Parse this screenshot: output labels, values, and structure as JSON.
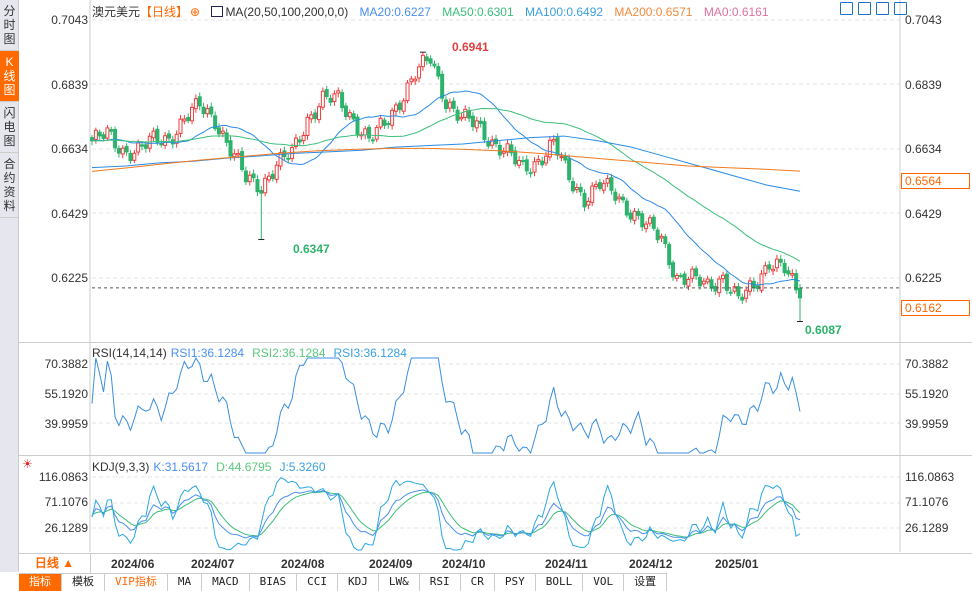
{
  "sidebar": {
    "tabs": [
      "分时图",
      "K线图",
      "闪电图",
      "合约资料"
    ],
    "active": 1
  },
  "header": {
    "symbol": "澳元美元",
    "period": "【日线】",
    "ma_label": "MA(20,50,100,200,0,0)",
    "ma20": "MA20:0.6227",
    "ma50": "MA50:0.6301",
    "ma100": "MA100:0.6492",
    "ma200": "MA200:0.6571",
    "ma0": "MA0:0.6161"
  },
  "colors": {
    "up": "#ee3d3d",
    "down": "#2db36b",
    "ma20": "#2a8ae6",
    "ma50": "#3cbf7a",
    "ma100": "#2a8ae6",
    "ma200": "#f07a1e",
    "accent": "#ff6a00"
  },
  "price_axis": {
    "labels": [
      "0.7043",
      "0.6839",
      "0.6634",
      "0.6429",
      "0.6225"
    ],
    "ma200_tag": "0.6564",
    "current_tag": "0.6162"
  },
  "annotations": {
    "high": "0.6941",
    "low_mid": "0.6347",
    "low_last": "0.6087"
  },
  "rsi": {
    "title": "RSI(14,14,14)",
    "rsi1": "RSI1:36.1284",
    "rsi2": "RSI2:36.1284",
    "rsi3": "RSI3:36.1284",
    "axis": [
      "70.3882",
      "55.1920",
      "39.9959"
    ]
  },
  "kdj": {
    "title": "KDJ(9,3,3)",
    "k": "K:31.5617",
    "d": "D:44.6795",
    "j": "J:5.3260",
    "axis": [
      "116.0863",
      "71.1076",
      "26.1289"
    ]
  },
  "dates": {
    "period": "日线 ▲",
    "months": [
      "2024/06",
      "2024/07",
      "2024/08",
      "2024/09",
      "2024/10",
      "2024/11",
      "2024/12",
      "2025/01"
    ]
  },
  "toolbar": [
    "指标",
    "模板",
    "VIP指标",
    "MA",
    "MACD",
    "BIAS",
    "CCI",
    "KDJ",
    "LW&",
    "RSI",
    "CR",
    "PSY",
    "BOLL",
    "VOL",
    "设置"
  ],
  "chart_data": {
    "type": "candlestick",
    "title": "澳元美元 日线",
    "weekly_close": [
      0.666,
      0.6678,
      0.663,
      0.663,
      0.666,
      0.667,
      0.6726,
      0.677,
      0.673,
      0.663,
      0.654,
      0.652,
      0.658,
      0.662,
      0.673,
      0.679,
      0.679,
      0.673,
      0.666,
      0.671,
      0.679,
      0.687,
      0.692,
      0.679,
      0.673,
      0.671,
      0.666,
      0.662,
      0.657,
      0.66,
      0.665,
      0.654,
      0.648,
      0.652,
      0.649,
      0.644,
      0.639,
      0.635,
      0.623,
      0.622,
      0.62,
      0.623,
      0.615,
      0.62,
      0.628,
      0.625,
      0.6162
    ],
    "ma100": [
      0.6575,
      0.658,
      0.659,
      0.6595,
      0.6605,
      0.6612,
      0.662,
      0.6625,
      0.663,
      0.664,
      0.6645,
      0.665,
      0.666,
      0.667,
      0.6675,
      0.666,
      0.664,
      0.661,
      0.658,
      0.655,
      0.652,
      0.65
    ],
    "ma200": [
      0.6563,
      0.6575,
      0.6588,
      0.66,
      0.661,
      0.662,
      0.6628,
      0.6633,
      0.6636,
      0.6636,
      0.6633,
      0.6628,
      0.662,
      0.661,
      0.66,
      0.659,
      0.658,
      0.6575,
      0.657,
      0.6564
    ],
    "ylim": [
      0.6087,
      0.7043
    ]
  }
}
